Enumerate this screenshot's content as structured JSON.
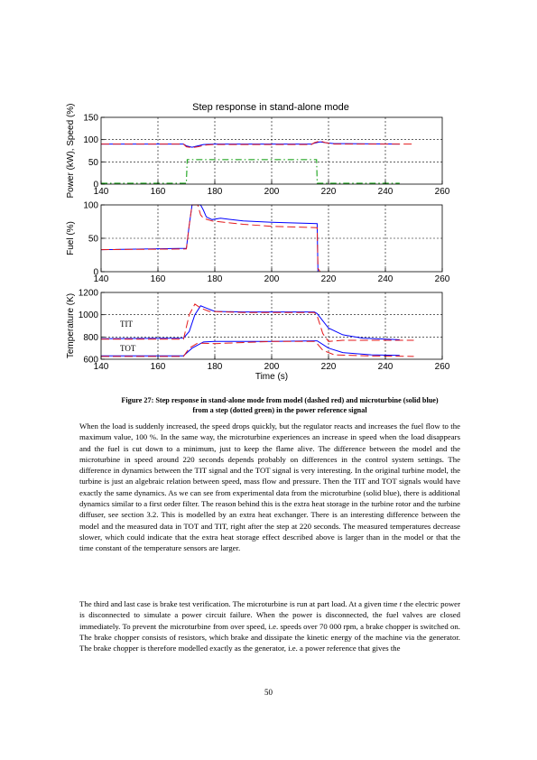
{
  "figure": {
    "title": "Step response in stand-alone mode",
    "x_axis_label": "Time (s)",
    "annotations": {
      "tit": "TIT",
      "tot": "TOT"
    }
  },
  "chart_data": [
    {
      "type": "line",
      "title": "Step response in stand-alone mode",
      "ylabel": "Power (kW), Speed (%)",
      "xlabel": "",
      "xlim": [
        140,
        260
      ],
      "ylim": [
        0,
        150
      ],
      "xticks": [
        140,
        160,
        180,
        200,
        220,
        240,
        260
      ],
      "yticks": [
        0,
        50,
        100,
        150
      ],
      "grid": true,
      "series": [
        {
          "style": "microturbine",
          "color": "#0000ff",
          "dash": "solid",
          "points": [
            [
              140,
              90
            ],
            [
              169,
              90
            ],
            [
              170,
              86
            ],
            [
              172,
              83
            ],
            [
              174,
              86
            ],
            [
              176,
              89
            ],
            [
              180,
              90
            ],
            [
              214,
              90
            ],
            [
              215,
              92
            ],
            [
              217,
              95
            ],
            [
              219,
              93
            ],
            [
              222,
              91
            ],
            [
              245,
              90
            ]
          ]
        },
        {
          "style": "model",
          "color": "#e31a1c",
          "dash": "dashed",
          "points": [
            [
              140,
              90
            ],
            [
              169,
              90
            ],
            [
              170,
              84
            ],
            [
              172,
              82
            ],
            [
              174,
              84
            ],
            [
              177,
              88
            ],
            [
              180,
              89
            ],
            [
              214,
              89
            ],
            [
              215,
              93
            ],
            [
              217,
              97
            ],
            [
              219,
              93
            ],
            [
              222,
              90
            ],
            [
              250,
              90
            ]
          ]
        },
        {
          "style": "reference",
          "color": "#009900",
          "dash": "dashdot",
          "points": [
            [
              140,
              2
            ],
            [
              170,
              2
            ],
            [
              170.3,
              55
            ],
            [
              215.8,
              55
            ],
            [
              216,
              2
            ],
            [
              245,
              2
            ]
          ]
        }
      ]
    },
    {
      "type": "line",
      "ylabel": "Fuel (%)",
      "xlim": [
        140,
        260
      ],
      "ylim": [
        0,
        100
      ],
      "xticks": [
        140,
        160,
        180,
        200,
        220,
        240,
        260
      ],
      "yticks": [
        0,
        50,
        100
      ],
      "grid": true,
      "series": [
        {
          "style": "microturbine",
          "color": "#0000ff",
          "dash": "solid",
          "points": [
            [
              140,
              33
            ],
            [
              170,
              35
            ],
            [
              171,
              70
            ],
            [
              172,
              100
            ],
            [
              175,
              100
            ],
            [
              176,
              92
            ],
            [
              177,
              82
            ],
            [
              179,
              78
            ],
            [
              182,
              80
            ],
            [
              190,
              76
            ],
            [
              200,
              74
            ],
            [
              216,
              72
            ],
            [
              216.3,
              0
            ]
          ]
        },
        {
          "style": "model",
          "color": "#e31a1c",
          "dash": "dashed",
          "points": [
            [
              140,
              33
            ],
            [
              170,
              34
            ],
            [
              171,
              70
            ],
            [
              172,
              100
            ],
            [
              174,
              100
            ],
            [
              175,
              85
            ],
            [
              176,
              80
            ],
            [
              179,
              76
            ],
            [
              190,
              71
            ],
            [
              200,
              68
            ],
            [
              216,
              66
            ],
            [
              216.3,
              5
            ],
            [
              217,
              0
            ]
          ]
        }
      ]
    },
    {
      "type": "line",
      "ylabel": "Temperature (K)",
      "xlabel": "Time (s)",
      "xlim": [
        140,
        260
      ],
      "ylim": [
        600,
        1200
      ],
      "xticks": [
        140,
        160,
        180,
        200,
        220,
        240,
        260
      ],
      "yticks": [
        600,
        800,
        1000,
        1200
      ],
      "grid": true,
      "series": [
        {
          "style": "microturbine",
          "color": "#0000ff",
          "dash": "solid",
          "points": [
            [
              140,
              785
            ],
            [
              169,
              790
            ],
            [
              171,
              850
            ],
            [
              173,
              1000
            ],
            [
              175,
              1080
            ],
            [
              177,
              1060
            ],
            [
              180,
              1030
            ],
            [
              190,
              1025
            ],
            [
              200,
              1025
            ],
            [
              215,
              1025
            ],
            [
              216,
              1010
            ],
            [
              220,
              880
            ],
            [
              225,
              820
            ],
            [
              232,
              790
            ],
            [
              245,
              775
            ]
          ]
        },
        {
          "style": "model",
          "color": "#e31a1c",
          "dash": "dashed",
          "points": [
            [
              140,
              780
            ],
            [
              169,
              780
            ],
            [
              171,
              1000
            ],
            [
              173,
              1095
            ],
            [
              175,
              1060
            ],
            [
              178,
              1030
            ],
            [
              190,
              1020
            ],
            [
              215,
              1020
            ],
            [
              216,
              990
            ],
            [
              218,
              830
            ],
            [
              220,
              760
            ],
            [
              225,
              770
            ],
            [
              250,
              770
            ]
          ]
        },
        {
          "style": "microturbine",
          "color": "#0000ff",
          "dash": "solid",
          "points": [
            [
              140,
              630
            ],
            [
              169,
              630
            ],
            [
              172,
              700
            ],
            [
              176,
              755
            ],
            [
              180,
              760
            ],
            [
              200,
              760
            ],
            [
              215,
              765
            ],
            [
              216,
              765
            ],
            [
              220,
              700
            ],
            [
              225,
              660
            ],
            [
              235,
              640
            ],
            [
              245,
              635
            ]
          ]
        },
        {
          "style": "model",
          "color": "#e31a1c",
          "dash": "dashed",
          "points": [
            [
              140,
              625
            ],
            [
              169,
              625
            ],
            [
              171,
              700
            ],
            [
              174,
              745
            ],
            [
              180,
              740
            ],
            [
              200,
              760
            ],
            [
              215,
              760
            ],
            [
              216,
              740
            ],
            [
              218,
              680
            ],
            [
              222,
              640
            ],
            [
              235,
              630
            ],
            [
              250,
              625
            ]
          ]
        }
      ]
    }
  ],
  "caption": {
    "line1": "Figure 27: Step response in stand-alone mode from model (dashed red) and microturbine (solid blue)",
    "line2": "from a step (dotted green) in the power reference signal"
  },
  "paragraphs": {
    "p1": "When the load is suddenly increased, the speed drops quickly, but the regulator reacts and increases the fuel flow to the maximum value, 100 %. In the same way, the microturbine experiences an increase in speed when the load disappears and the fuel is cut down to a minimum, just to keep the flame alive. The difference between the model and the microturbine in speed around 220 seconds depends probably on differences in the control system settings. The difference in dynamics between the TIT signal and the TOT signal is very interesting. In the original turbine model, the turbine is just an algebraic relation between speed, mass flow and pressure. Then the TIT and TOT signals would have exactly the same dynamics. As we can see from experimental data from the microturbine (solid blue), there is additional dynamics similar to a first order filter. The reason behind this is the extra heat storage in the turbine rotor and the turbine diffuser, see section 3.2. This is modelled by an extra heat exchanger. There is an interesting difference between the model and the measured data in TOT and TIT, right after the step at 220 seconds. The measured temperatures decrease slower, which could indicate that the extra heat storage effect described above is larger than in the model or that the time constant of the temperature sensors are larger.",
    "p2_before": "The third and last case is brake test verification. The microturbine is run at part load. At a given time ",
    "p2_var": "t",
    "p2_after": " the electric power is disconnected to simulate a power circuit failure. When the power is disconnected, the fuel valves are closed immediately. To prevent the microturbine from over speed, i.e. speeds over 70 000 rpm, a brake chopper is switched on. The brake chopper consists of resistors, which brake and dissipate the kinetic energy of the machine via the generator. The brake chopper is therefore modelled exactly as the generator, i.e. a power reference that gives the"
  },
  "page_number": "50"
}
